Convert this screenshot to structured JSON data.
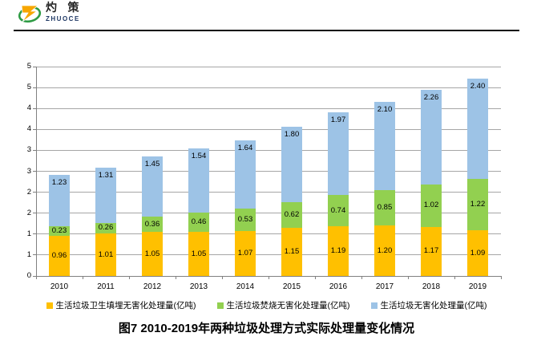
{
  "logo": {
    "brand_cn": "灼 策",
    "brand_en": "ZHUOCE",
    "colors": {
      "z_orange": "#F7A600",
      "ring_green": "#2E9B44",
      "en_navy": "#1F3864"
    }
  },
  "title": "图7  2010-2019年两种垃圾处理方式实际处理量变化情况",
  "chart_data": {
    "type": "bar",
    "stacked": true,
    "categories": [
      "2010",
      "2011",
      "2012",
      "2013",
      "2014",
      "2015",
      "2016",
      "2017",
      "2018",
      "2019"
    ],
    "series": [
      {
        "key": "landfill",
        "name": "生活垃圾卫生填埋无害化处理量(亿吨)",
        "color": "#FFC000",
        "values": [
          0.96,
          1.01,
          1.05,
          1.05,
          1.07,
          1.15,
          1.19,
          1.2,
          1.17,
          1.09
        ]
      },
      {
        "key": "incineration",
        "name": "生活垃圾焚烧无害化处理量(亿吨)",
        "color": "#92D050",
        "values": [
          0.23,
          0.26,
          0.36,
          0.46,
          0.53,
          0.62,
          0.74,
          0.85,
          1.02,
          1.22
        ]
      },
      {
        "key": "harmless-total",
        "name": "生活垃圾无害化处理量(亿吨)",
        "color": "#9DC3E6",
        "values": [
          1.23,
          1.31,
          1.45,
          1.54,
          1.64,
          1.8,
          1.97,
          2.1,
          2.26,
          2.4
        ]
      }
    ],
    "ylim": [
      0,
      5
    ],
    "y_tick_step": 0.5,
    "y_tick_labels_bottom_to_top": [
      "0",
      "1",
      "1",
      "2",
      "2",
      "3",
      "3",
      "4",
      "4",
      "5",
      "5"
    ],
    "value_label_decimals": 2,
    "grid": true,
    "legend_position": "bottom",
    "colors": {
      "gridline": "#A6A6A6",
      "axis": "#808080"
    }
  }
}
